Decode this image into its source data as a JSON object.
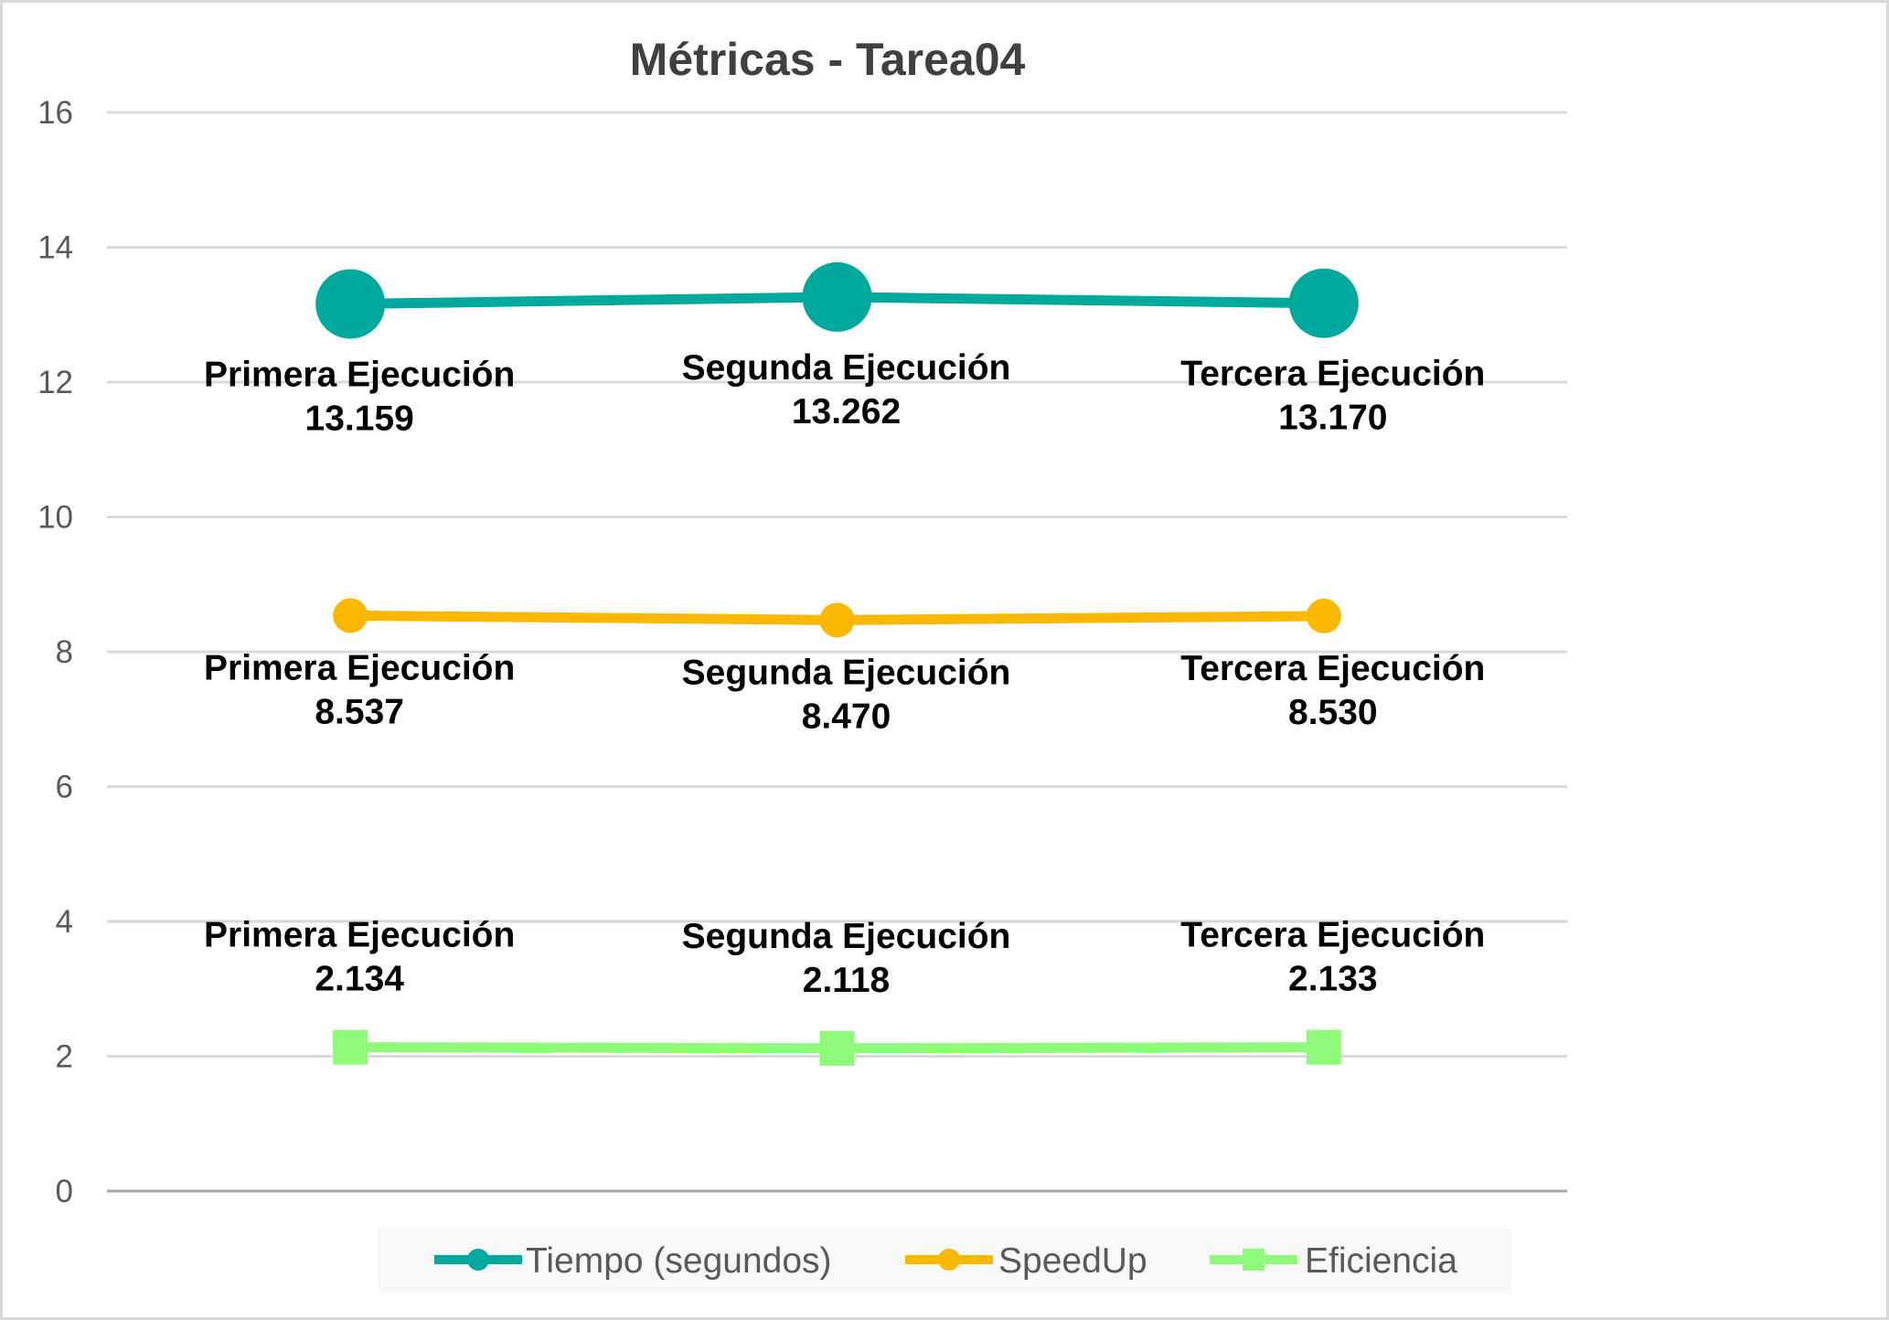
{
  "chart_data": {
    "type": "line",
    "title": "Métricas - Tarea04",
    "xlabel": "",
    "ylabel": "",
    "categories": [
      "Primera Ejecución",
      "Segunda Ejecución",
      "Tercera Ejecución"
    ],
    "ylim": [
      0,
      16
    ],
    "yticks": [
      0,
      2,
      4,
      6,
      8,
      10,
      12,
      14,
      16
    ],
    "grid": true,
    "legend_position": "bottom",
    "series": [
      {
        "name": "Tiempo (segundos)",
        "values": [
          13.159,
          13.262,
          13.17
        ],
        "labels": [
          "13.159",
          "13.262",
          "13.170"
        ],
        "color": "#00A99D",
        "marker": "circle-large",
        "label_position": "below"
      },
      {
        "name": "SpeedUp",
        "values": [
          8.537,
          8.47,
          8.53
        ],
        "labels": [
          "8.537",
          "8.470",
          "8.530"
        ],
        "color": "#FBB800",
        "marker": "circle",
        "label_position": "below"
      },
      {
        "name": "Eficiencia",
        "values": [
          2.134,
          2.118,
          2.133
        ],
        "labels": [
          "2.134",
          "2.118",
          "2.133"
        ],
        "color": "#8FFA7A",
        "marker": "square",
        "label_position": "above"
      }
    ]
  }
}
